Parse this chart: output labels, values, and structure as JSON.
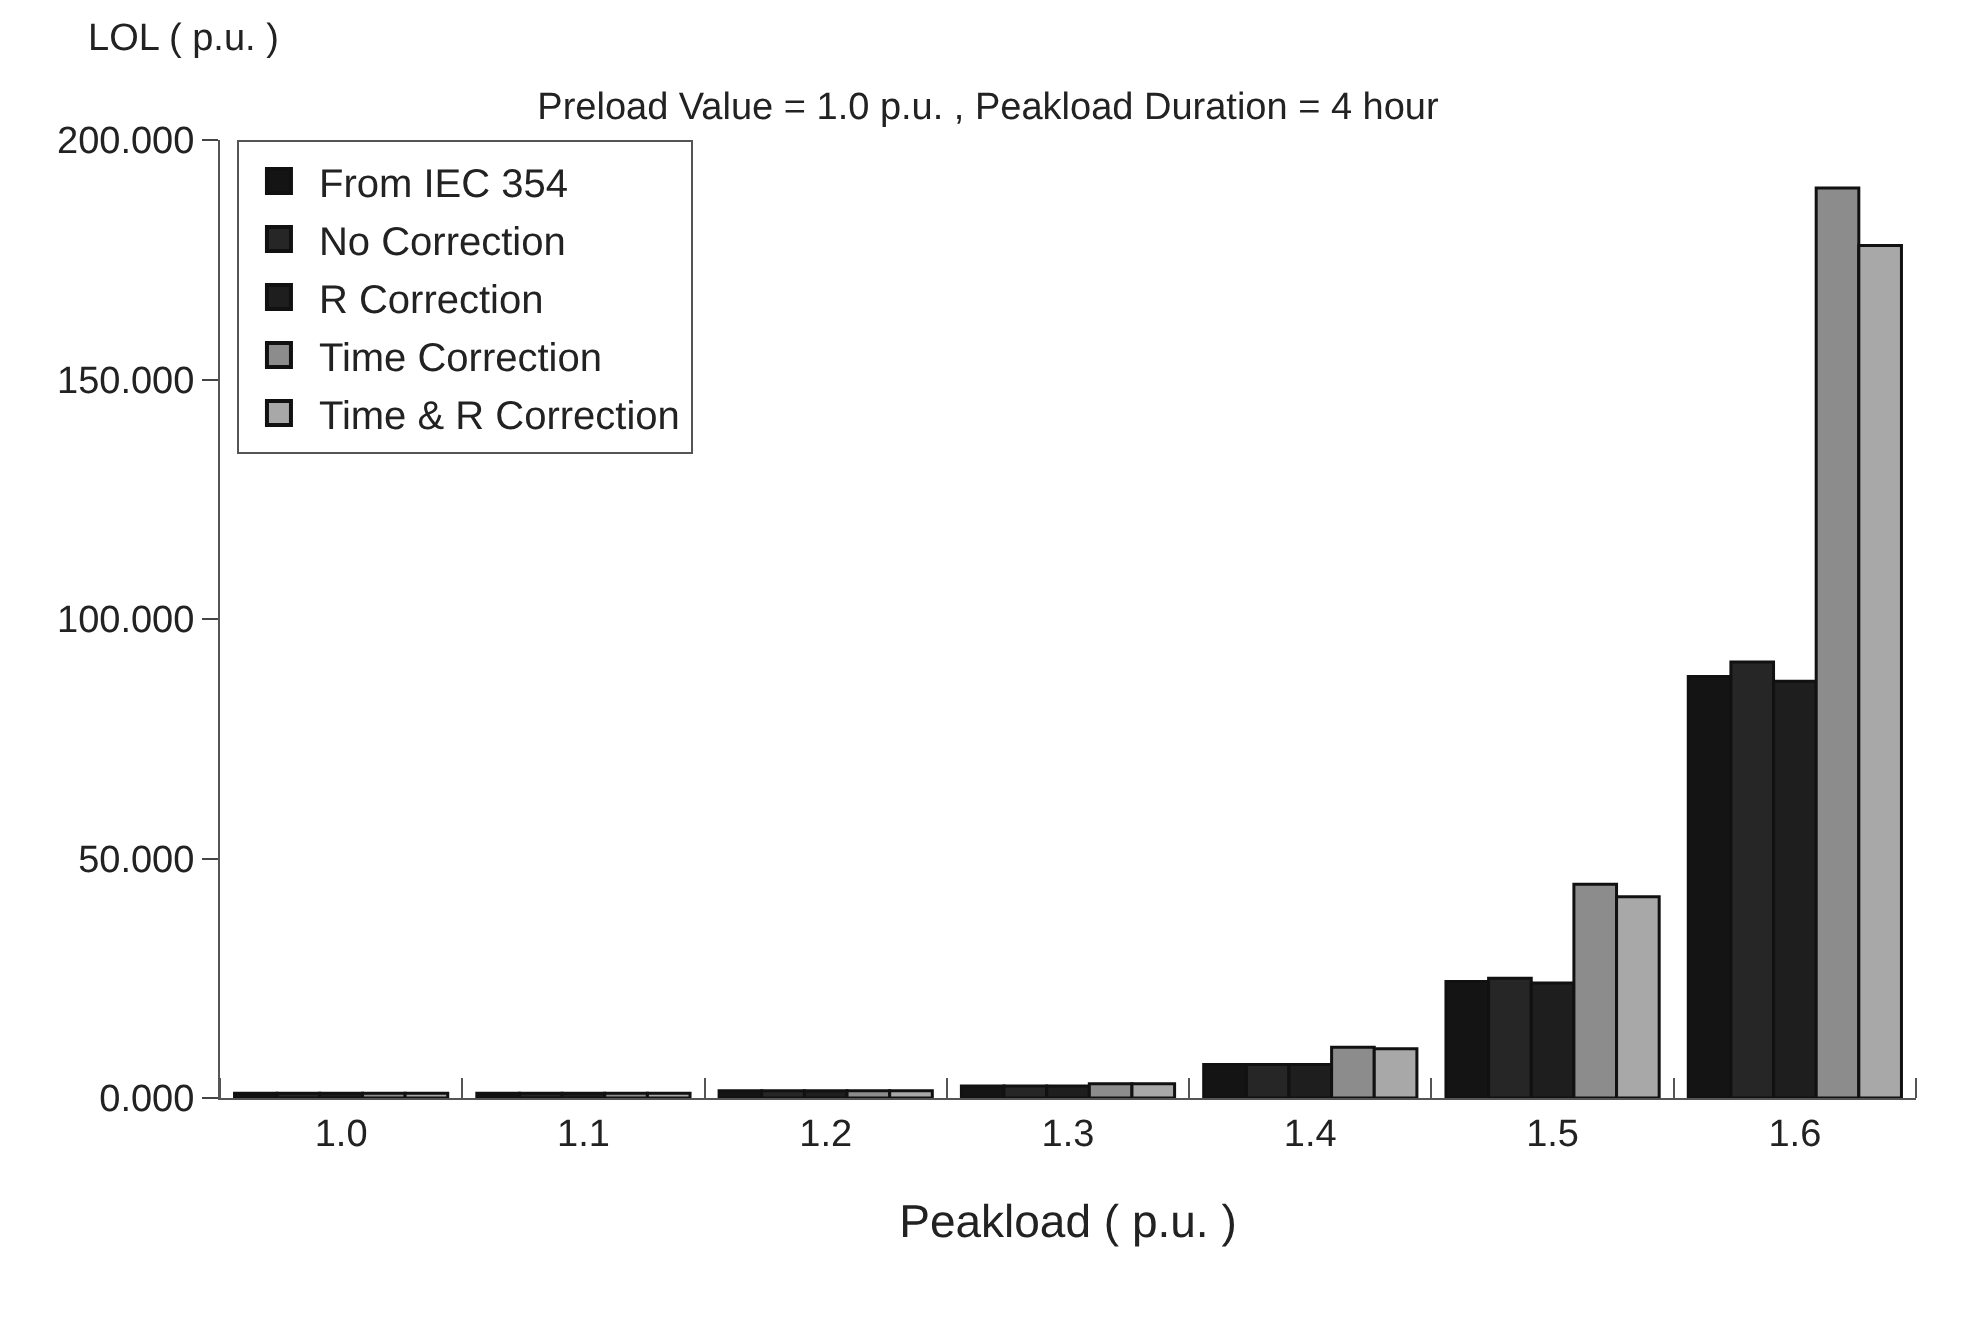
{
  "chart_data": {
    "type": "bar",
    "title": "Preload Value = 1.0 p.u. , Peakload Duration = 4 hour",
    "xlabel": "Peakload ( p.u. )",
    "ylabel": "LOL ( p.u. )",
    "categories": [
      "1.0",
      "1.1",
      "1.2",
      "1.3",
      "1.4",
      "1.5",
      "1.6"
    ],
    "series": [
      {
        "name": "From IEC 354",
        "color": "#141414",
        "values": [
          1,
          1,
          1.5,
          2.5,
          7,
          24.3,
          88
        ]
      },
      {
        "name": "No Correction",
        "color": "#262626",
        "values": [
          1,
          1,
          1.5,
          2.5,
          7,
          25,
          91
        ]
      },
      {
        "name": "R Correction",
        "color": "#1e1e1e",
        "values": [
          1,
          1,
          1.5,
          2.5,
          7,
          24,
          87
        ]
      },
      {
        "name": "Time Correction",
        "color": "#8c8c8c",
        "values": [
          1,
          1,
          1.5,
          3,
          10.6,
          44.6,
          190
        ]
      },
      {
        "name": "Time & R Correction",
        "color": "#a8a8a8",
        "values": [
          1,
          1,
          1.5,
          3,
          10.3,
          42,
          178
        ]
      }
    ],
    "ylim": [
      0,
      200
    ],
    "yticks": [
      {
        "value": 0,
        "label": "0.000"
      },
      {
        "value": 50,
        "label": "50.000"
      },
      {
        "value": 100,
        "label": "100.000"
      },
      {
        "value": 150,
        "label": "150.000"
      },
      {
        "value": 200,
        "label": "200.000"
      }
    ],
    "legend": "top left"
  }
}
